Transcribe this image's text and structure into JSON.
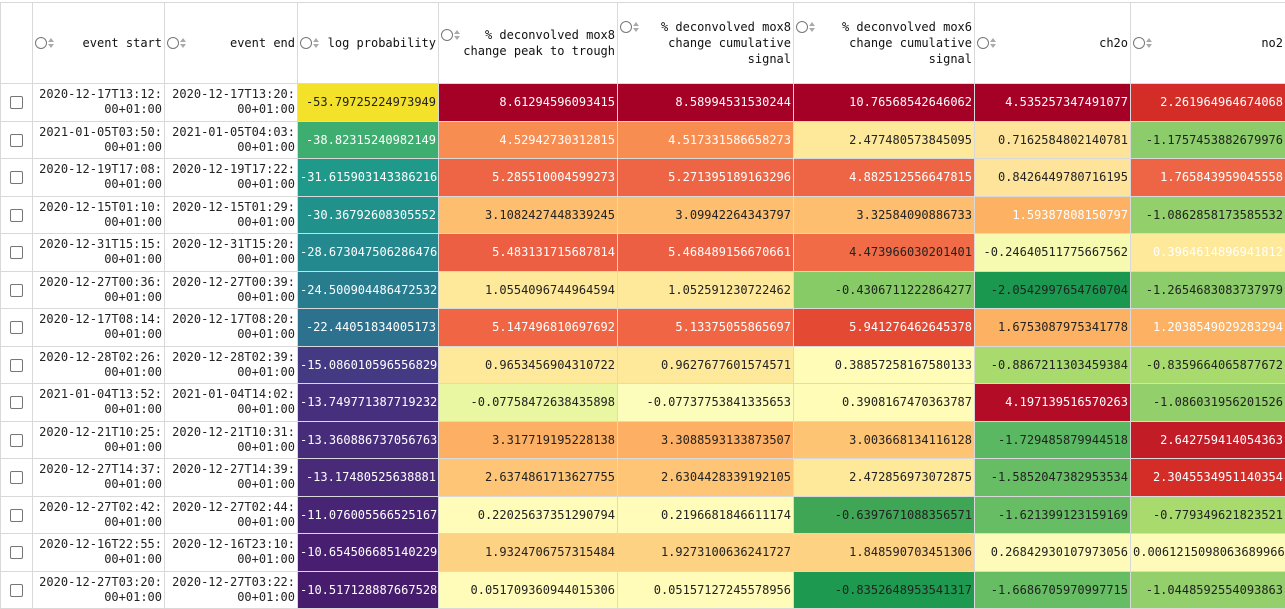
{
  "columns": [
    {
      "key": "select",
      "label": ""
    },
    {
      "key": "event_start",
      "label": "event start"
    },
    {
      "key": "event_end",
      "label": "event end"
    },
    {
      "key": "log_probability",
      "label": "log probability"
    },
    {
      "key": "mox8_peak",
      "label": "% deconvolved mox8 change peak to trough"
    },
    {
      "key": "mox8_cum",
      "label": "% deconvolved mox8 change cumulative signal"
    },
    {
      "key": "mox6_cum",
      "label": "% deconvolved mox6 change cumulative signal"
    },
    {
      "key": "ch2o",
      "label": "ch2o"
    },
    {
      "key": "no2",
      "label": "no2"
    }
  ],
  "rows": [
    {
      "start": "2020-12-17T13:12:00+01:00",
      "end": "2020-12-17T13:20:00+01:00",
      "lp": "-53.79725224973949",
      "lp_color": "#f4e22a",
      "vals": [
        [
          "8.61294596093415",
          "#a50026",
          true
        ],
        [
          "8.58994531530244",
          "#a50026",
          true
        ],
        [
          "10.7656854264606​2",
          "#a50026",
          true
        ],
        [
          "4.535257347491077",
          "#a50026",
          true
        ],
        [
          "2.261964964674068",
          "#d42d27",
          true
        ]
      ]
    },
    {
      "start": "2021-01-05T03:50:00+01:00",
      "end": "2021-01-05T04:03:00+01:00",
      "lp": "-38.82315240982149",
      "lp_color": "#3dae6f",
      "vals": [
        [
          "4.52942730312815",
          "#f88d52",
          true
        ],
        [
          "4.51733158665827​3",
          "#f88d52",
          true
        ],
        [
          "2.477480573845095",
          "#fee89a",
          false
        ],
        [
          "0.7162584802140781",
          "#fee49a",
          false
        ],
        [
          "-1.1757453882679976",
          "#8ccc6a",
          false
        ]
      ]
    },
    {
      "start": "2020-12-19T17:08:00+01:00",
      "end": "2020-12-19T17:22:00+01:00",
      "lp": "-31.615903143386216",
      "lp_color": "#1f9a8a",
      "vals": [
        [
          "5.285510004599273",
          "#ee6545",
          true
        ],
        [
          "5.271395189163296",
          "#ee6545",
          true
        ],
        [
          "4.882512556647815",
          "#ee6545",
          true
        ],
        [
          "0.8426449780716195",
          "#fee49a",
          false
        ],
        [
          "1.765843959045558",
          "#ee6545",
          true
        ]
      ]
    },
    {
      "start": "2020-12-15T01:10:00+01:00",
      "end": "2020-12-15T01:29:00+01:00",
      "lp": "-30.36792608305552",
      "lp_color": "#21918c",
      "vals": [
        [
          "3.1082427448339245",
          "#fdbe70",
          false
        ],
        [
          "3.09942264343797",
          "#fdbe70",
          false
        ],
        [
          "3.32584090886733",
          "#fdbe70",
          false
        ],
        [
          "1.5938780815079​7",
          "#fdb163",
          true
        ],
        [
          "-1.0862858173585532",
          "#93cf6a",
          false
        ]
      ]
    },
    {
      "start": "2020-12-31T15:15:00+01:00",
      "end": "2020-12-31T15:20:00+01:00",
      "lp": "-28.673047506286476",
      "lp_color": "#23898e",
      "vals": [
        [
          "5.483131715687814",
          "#ec5f43",
          true
        ],
        [
          "5.468489156670661",
          "#ec5f43",
          true
        ],
        [
          "4.473966030201401",
          "#f26b47",
          false
        ],
        [
          "-0.24640511775667562",
          "#f6fab0",
          false
        ],
        [
          "0.396461489694181​2",
          "#fee89a",
          true
        ]
      ]
    },
    {
      "start": "2020-12-27T00:36:00+01:00",
      "end": "2020-12-27T00:39:00+01:00",
      "lp": "-24.500904486472532",
      "lp_color": "#277c8e",
      "vals": [
        [
          "1.0554096744964594",
          "#fee89a",
          false
        ],
        [
          "1.052591230722462",
          "#fee89a",
          false
        ],
        [
          "-0.4306711222864277",
          "#86cb66",
          false
        ],
        [
          "-2.0542997654760704",
          "#1a9850",
          false
        ],
        [
          "-1.2654683083737979",
          "#8ccc6a",
          false
        ]
      ]
    },
    {
      "start": "2020-12-17T08:14:00+01:00",
      "end": "2020-12-17T08:20:00+01:00",
      "lp": "-22.44051834005173",
      "lp_color": "#2c718e",
      "vals": [
        [
          "5.14749681069769​2",
          "#f06644",
          true
        ],
        [
          "5.13375055865697",
          "#f06644",
          true
        ],
        [
          "5.941276462645378",
          "#e34933",
          true
        ],
        [
          "1.6753087975341778",
          "#fdb163",
          false
        ],
        [
          "1.2038549029283294",
          "#fdb163",
          true
        ]
      ]
    },
    {
      "start": "2020-12-28T02:26:00+01:00",
      "end": "2020-12-28T02:39:00+01:00",
      "lp": "-15.086010596556829",
      "lp_color": "#443a83",
      "vals": [
        [
          "0.9653456904310722",
          "#fee99a",
          false
        ],
        [
          "0.9627677601574571",
          "#fee99a",
          false
        ],
        [
          "0.38857258167580133",
          "#fffcb8",
          false
        ],
        [
          "-0.8867211303459384",
          "#a9da6e",
          false
        ],
        [
          "-0.8359664065877672",
          "#a9da6e",
          false
        ]
      ]
    },
    {
      "start": "2021-01-04T13:52:00+01:00",
      "end": "2021-01-04T14:02:00+01:00",
      "lp": "-13.74977138771923​2",
      "lp_color": "#46307e",
      "vals": [
        [
          "-0.07758472638435898",
          "#e9f6a2",
          false
        ],
        [
          "-0.07737753841335653",
          "#fcfdbb",
          false
        ],
        [
          "0.3908167470363787",
          "#fffcb8",
          false
        ],
        [
          "4.197139516570263",
          "#b30c26",
          true
        ],
        [
          "-1.086031956201526",
          "#93cf6a",
          false
        ]
      ]
    },
    {
      "start": "2020-12-21T10:25:00+01:00",
      "end": "2020-12-21T10:31:00+01:00",
      "lp": "-13.360886737056763",
      "lp_color": "#472c7a",
      "vals": [
        [
          "3.317719195228138",
          "#fdb063",
          false
        ],
        [
          "3.308859313387350​7",
          "#fdb063",
          false
        ],
        [
          "3.003668134116128",
          "#fdc474",
          false
        ],
        [
          "-1.729485879944518",
          "#5bb862",
          false
        ],
        [
          "2.642759414054363",
          "#c21c27",
          true
        ]
      ]
    },
    {
      "start": "2020-12-27T14:37:00+01:00",
      "end": "2020-12-27T14:39:00+01:00",
      "lp": "-13.1748052563888​1",
      "lp_color": "#482a79",
      "vals": [
        [
          "2.6374861713627755",
          "#fdc575",
          false
        ],
        [
          "2.6304428339192105",
          "#fdc575",
          false
        ],
        [
          "2.472856973072875",
          "#fee89a",
          false
        ],
        [
          "-1.5852047382953534",
          "#66bd63",
          false
        ],
        [
          "2.3045534951140354",
          "#d42d27",
          true
        ]
      ]
    },
    {
      "start": "2020-12-27T02:42:00+01:00",
      "end": "2020-12-27T02:44:00+01:00",
      "lp": "-11.076005566525167",
      "lp_color": "#482475",
      "vals": [
        [
          "0.22025637351290794",
          "#fffbb8",
          false
        ],
        [
          "0.2196681846611174",
          "#fffbb8",
          false
        ],
        [
          "-0.6397671088356571",
          "#3ea654",
          false
        ],
        [
          "-1.621399123159169",
          "#66bd63",
          false
        ],
        [
          "-0.779349621823521",
          "#a9da6e",
          false
        ]
      ]
    },
    {
      "start": "2020-12-16T22:55:00+01:00",
      "end": "2020-12-16T23:10:00+01:00",
      "lp": "-10.654506685140229",
      "lp_color": "#481f70",
      "vals": [
        [
          "1.9324706757315484",
          "#fdd283",
          false
        ],
        [
          "1.9273100636241727",
          "#fdd283",
          false
        ],
        [
          "1.848590703451306",
          "#fdd283",
          false
        ],
        [
          "0.26842930107973056",
          "#fefbba",
          false
        ],
        [
          "0.006121509806368996​6",
          "#fefbba",
          false
        ]
      ]
    },
    {
      "start": "2020-12-27T03:20:00+01:00",
      "end": "2020-12-27T03:22:00+01:00",
      "lp": "-10.517128887667528",
      "lp_color": "#471c6d",
      "vals": [
        [
          "0.051709360944015306",
          "#fffcb9",
          false
        ],
        [
          "0.05157127245578956",
          "#fffcb9",
          false
        ],
        [
          "-0.8352648953541317",
          "#1e9a50",
          false
        ],
        [
          "-1.6686705970997715",
          "#66bd63",
          false
        ],
        [
          "-1.0448592554093863",
          "#93cf6a",
          false
        ]
      ]
    }
  ]
}
